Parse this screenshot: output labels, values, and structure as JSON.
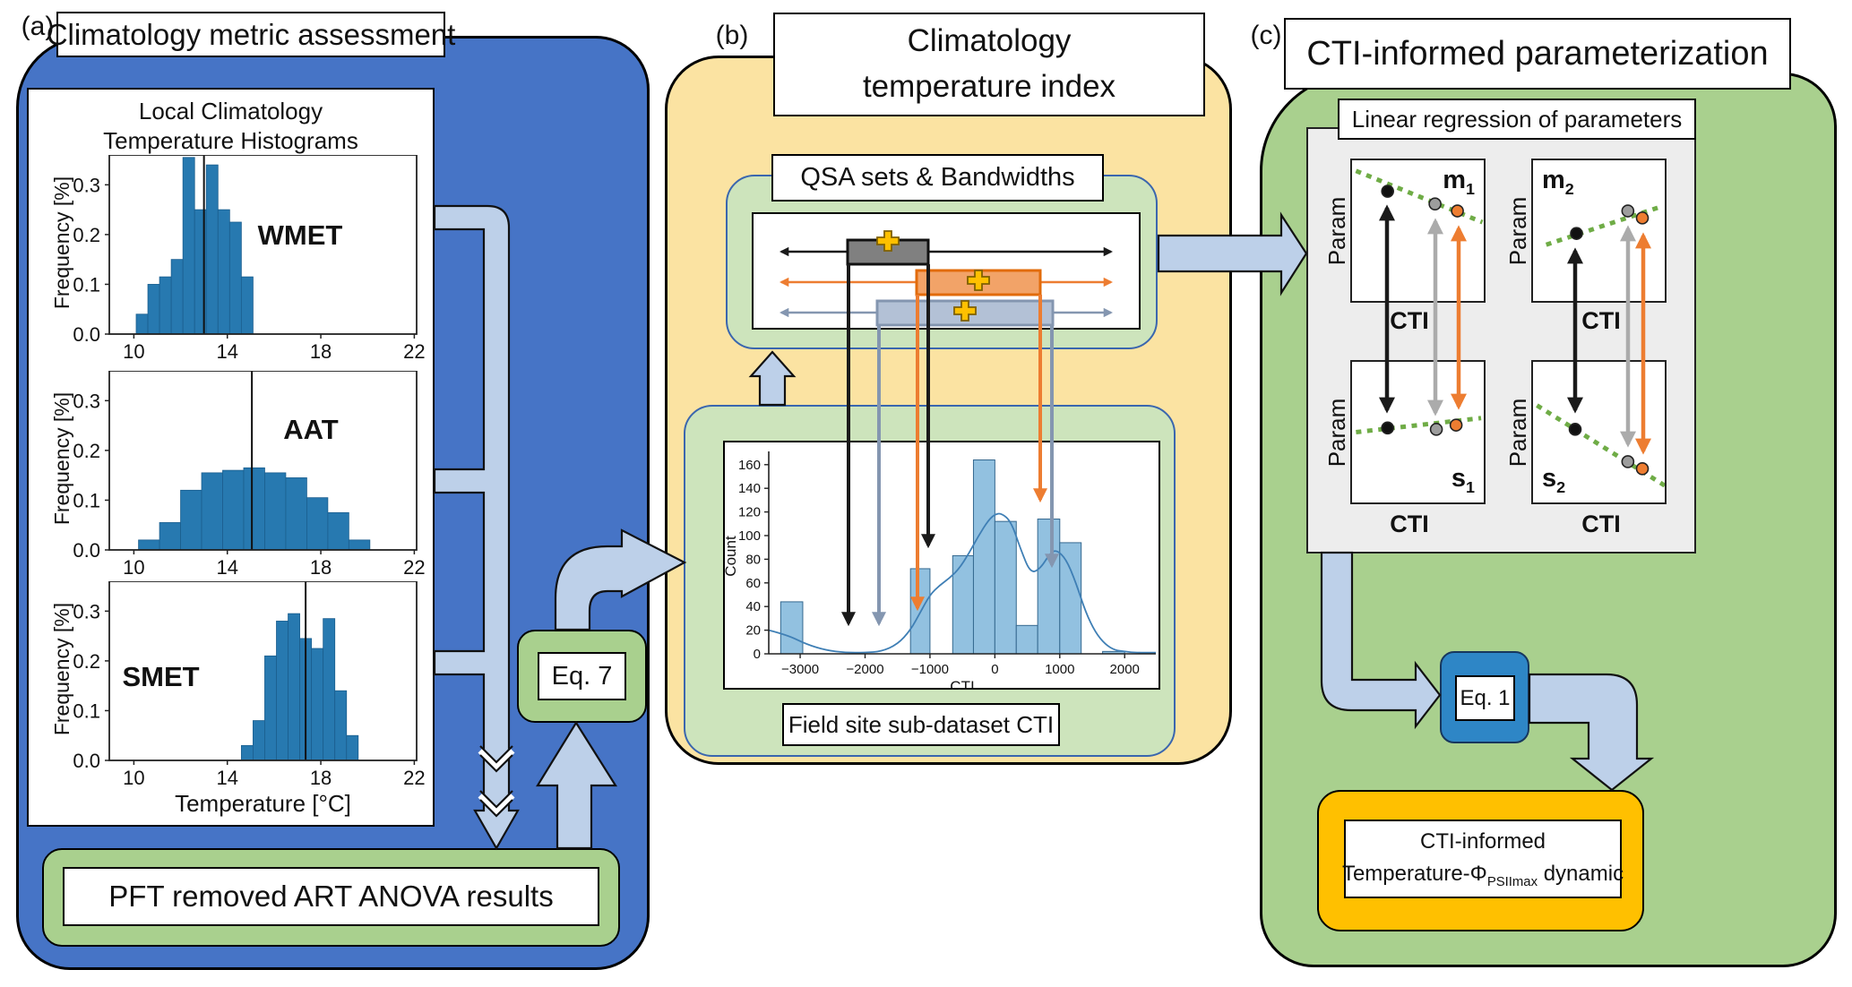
{
  "labels": {
    "a": "(a)",
    "b": "(b)",
    "c": "(c)"
  },
  "panel_a": {
    "title": "Climatology metric assessment",
    "hist_title_line1": "Local Climatology",
    "hist_title_line2": "Temperature Histograms",
    "pft_box": "PFT removed ART ANOVA results",
    "eq7": "Eq. 7"
  },
  "panel_b": {
    "title_line1": "Climatology",
    "title_line2": "temperature index",
    "qsa_label": "QSA sets & Bandwidths",
    "field_label": "Field site sub-dataset CTI"
  },
  "panel_c": {
    "title": "CTI-informed parameterization",
    "regression_label": "Linear regression of parameters",
    "eq1": "Eq. 1",
    "final_line1": "CTI-informed",
    "final_prefix": "Temperature-Φ",
    "final_sub": "PSIImax",
    "final_suffix": " dynamic"
  },
  "colors": {
    "panel_a_fill": "#4674C6",
    "panel_b_fill": "#FBE3A2",
    "panel_c_fill": "#A9D08E",
    "inner_green": "#CDE4BC",
    "flow_arrow": "#BDD0E9",
    "hist_bar": "#2779B0",
    "hist_bar_edge": "#1B5E8E",
    "cti_bar": "#92C1E0",
    "cti_bar_edge": "#35688F",
    "kde_line": "#3F7FB5",
    "orange": "#ED7D31",
    "gray_point": "#9D9D9D",
    "blue_gray": "#8496B0",
    "blue_gray_fill": "#B3C1D6",
    "gray_box": "#808080",
    "gold": "#FFC000",
    "gold_edge": "#7F6000",
    "eq1_fill": "#2E86C6",
    "eq1_edge": "#17375E",
    "regression_line": "#6FAC46",
    "black": "#1A1A1A"
  },
  "chart_data": [
    {
      "id": "wmet",
      "type": "bar",
      "label": "WMET",
      "ylabel": "Frequency [%]",
      "xticks": [
        10,
        14,
        18,
        22
      ],
      "xtick_labels": [
        "10",
        "14",
        "18",
        "22"
      ],
      "yticks": [
        0.0,
        0.1,
        0.2,
        0.3
      ],
      "ytick_labels": [
        "0.0",
        "0.1",
        "0.2",
        "0.3"
      ],
      "xlim": [
        8.95,
        22.1
      ],
      "ylim": [
        0,
        0.36
      ],
      "bin_start": 10.1,
      "bin_width": 0.5,
      "values": [
        0.04,
        0.1,
        0.115,
        0.15,
        0.355,
        0.25,
        0.34,
        0.25,
        0.225,
        0.115
      ],
      "vline": 13.0
    },
    {
      "id": "aat",
      "type": "bar",
      "label": "AAT",
      "ylabel": "Frequency [%]",
      "xticks": [
        10,
        14,
        18,
        22
      ],
      "xtick_labels": [
        "10",
        "14",
        "18",
        "22"
      ],
      "yticks": [
        0.0,
        0.1,
        0.2,
        0.3
      ],
      "ytick_labels": [
        "0.0",
        "0.1",
        "0.2",
        "0.3"
      ],
      "xlim": [
        8.95,
        22.1
      ],
      "ylim": [
        0,
        0.36
      ],
      "bin_start": 10.2,
      "bin_width": 0.9,
      "values": [
        0.02,
        0.055,
        0.12,
        0.155,
        0.16,
        0.165,
        0.155,
        0.145,
        0.105,
        0.075,
        0.02
      ],
      "vline": 15.05
    },
    {
      "id": "smet",
      "type": "bar",
      "label": "SMET",
      "ylabel": "Frequency [%]",
      "xlabel": "Temperature [°C]",
      "xticks": [
        10,
        14,
        18,
        22
      ],
      "xtick_labels": [
        "10",
        "14",
        "18",
        "22"
      ],
      "yticks": [
        0.0,
        0.1,
        0.2,
        0.3
      ],
      "ytick_labels": [
        "0.0",
        "0.1",
        "0.2",
        "0.3"
      ],
      "xlim": [
        8.95,
        22.1
      ],
      "ylim": [
        0,
        0.36
      ],
      "bin_start": 14.6,
      "bin_width": 0.5,
      "values": [
        0.03,
        0.08,
        0.21,
        0.28,
        0.295,
        0.245,
        0.225,
        0.285,
        0.14,
        0.05
      ],
      "vline": 17.35
    },
    {
      "id": "cti",
      "type": "histogram+kde",
      "xlabel": "CTI",
      "ylabel": "Count",
      "xticks": [
        -3000,
        -2000,
        -1000,
        0,
        1000,
        2000
      ],
      "xtick_labels": [
        "−3000",
        "−2000",
        "−1000",
        "0",
        "1000",
        "2000"
      ],
      "yticks": [
        0,
        20,
        40,
        60,
        80,
        100,
        120,
        140,
        160
      ],
      "xlim": [
        -3484,
        2480
      ],
      "ylim": [
        0,
        180
      ],
      "bars": [
        {
          "x0": -3300,
          "x1": -2960,
          "count": 44
        },
        {
          "x0": -1300,
          "x1": -1000,
          "count": 72
        },
        {
          "x0": -650,
          "x1": -330,
          "count": 83
        },
        {
          "x0": -330,
          "x1": 0,
          "count": 164
        },
        {
          "x0": 0,
          "x1": 330,
          "count": 112
        },
        {
          "x0": 330,
          "x1": 660,
          "count": 24
        },
        {
          "x0": 660,
          "x1": 1000,
          "count": 114
        },
        {
          "x0": 1000,
          "x1": 1330,
          "count": 94
        },
        {
          "x0": 1660,
          "x1": 2000,
          "count": 2
        }
      ],
      "kde": [
        [
          -3484,
          20
        ],
        [
          -3200,
          16
        ],
        [
          -2900,
          8
        ],
        [
          -2600,
          3
        ],
        [
          -2300,
          1
        ],
        [
          -2000,
          1
        ],
        [
          -1750,
          2
        ],
        [
          -1500,
          8
        ],
        [
          -1300,
          20
        ],
        [
          -1150,
          35
        ],
        [
          -1000,
          50
        ],
        [
          -850,
          58
        ],
        [
          -700,
          64
        ],
        [
          -550,
          72
        ],
        [
          -400,
          85
        ],
        [
          -250,
          100
        ],
        [
          -100,
          113
        ],
        [
          0,
          118
        ],
        [
          100,
          119
        ],
        [
          250,
          112
        ],
        [
          400,
          88
        ],
        [
          550,
          68
        ],
        [
          700,
          72
        ],
        [
          850,
          85
        ],
        [
          950,
          88
        ],
        [
          1100,
          80
        ],
        [
          1250,
          60
        ],
        [
          1400,
          35
        ],
        [
          1550,
          18
        ],
        [
          1700,
          8
        ],
        [
          1850,
          3
        ],
        [
          2000,
          2
        ],
        [
          2150,
          1
        ],
        [
          2480,
          1
        ]
      ]
    },
    {
      "id": "m1",
      "type": "scatter",
      "label_main": "m",
      "label_sub": "1",
      "ylabel": "Param",
      "xlabel": "CTI",
      "line": [
        [
          0.03,
          0.075
        ],
        [
          0.99,
          0.44
        ]
      ],
      "points": [
        {
          "series": "black",
          "x": 0.27,
          "y": 0.22
        },
        {
          "series": "gray",
          "x": 0.63,
          "y": 0.31
        },
        {
          "series": "orange",
          "x": 0.8,
          "y": 0.36
        }
      ]
    },
    {
      "id": "m2",
      "type": "scatter",
      "label_main": "m",
      "label_sub": "2",
      "ylabel": "Param",
      "xlabel": "CTI",
      "line": [
        [
          0.1,
          0.6
        ],
        [
          0.97,
          0.33
        ]
      ],
      "points": [
        {
          "series": "black",
          "x": 0.33,
          "y": 0.52
        },
        {
          "series": "gray",
          "x": 0.72,
          "y": 0.36
        },
        {
          "series": "orange",
          "x": 0.83,
          "y": 0.41
        }
      ]
    },
    {
      "id": "s1",
      "type": "scatter",
      "label_main": "s",
      "label_sub": "1",
      "ylabel": "Param",
      "xlabel": "CTI",
      "line": [
        [
          0.03,
          0.5
        ],
        [
          0.98,
          0.4
        ]
      ],
      "points": [
        {
          "series": "black",
          "x": 0.27,
          "y": 0.47
        },
        {
          "series": "gray",
          "x": 0.64,
          "y": 0.48
        },
        {
          "series": "orange",
          "x": 0.79,
          "y": 0.45
        }
      ]
    },
    {
      "id": "s2",
      "type": "scatter",
      "label_main": "s",
      "label_sub": "2",
      "ylabel": "Param",
      "xlabel": "CTI",
      "line": [
        [
          0.03,
          0.31
        ],
        [
          1.0,
          0.88
        ]
      ],
      "points": [
        {
          "series": "black",
          "x": 0.32,
          "y": 0.48
        },
        {
          "series": "gray",
          "x": 0.72,
          "y": 0.71
        },
        {
          "series": "orange",
          "x": 0.83,
          "y": 0.76
        }
      ]
    }
  ],
  "icons": {
    "plus_icon_color": "#FFC000"
  }
}
